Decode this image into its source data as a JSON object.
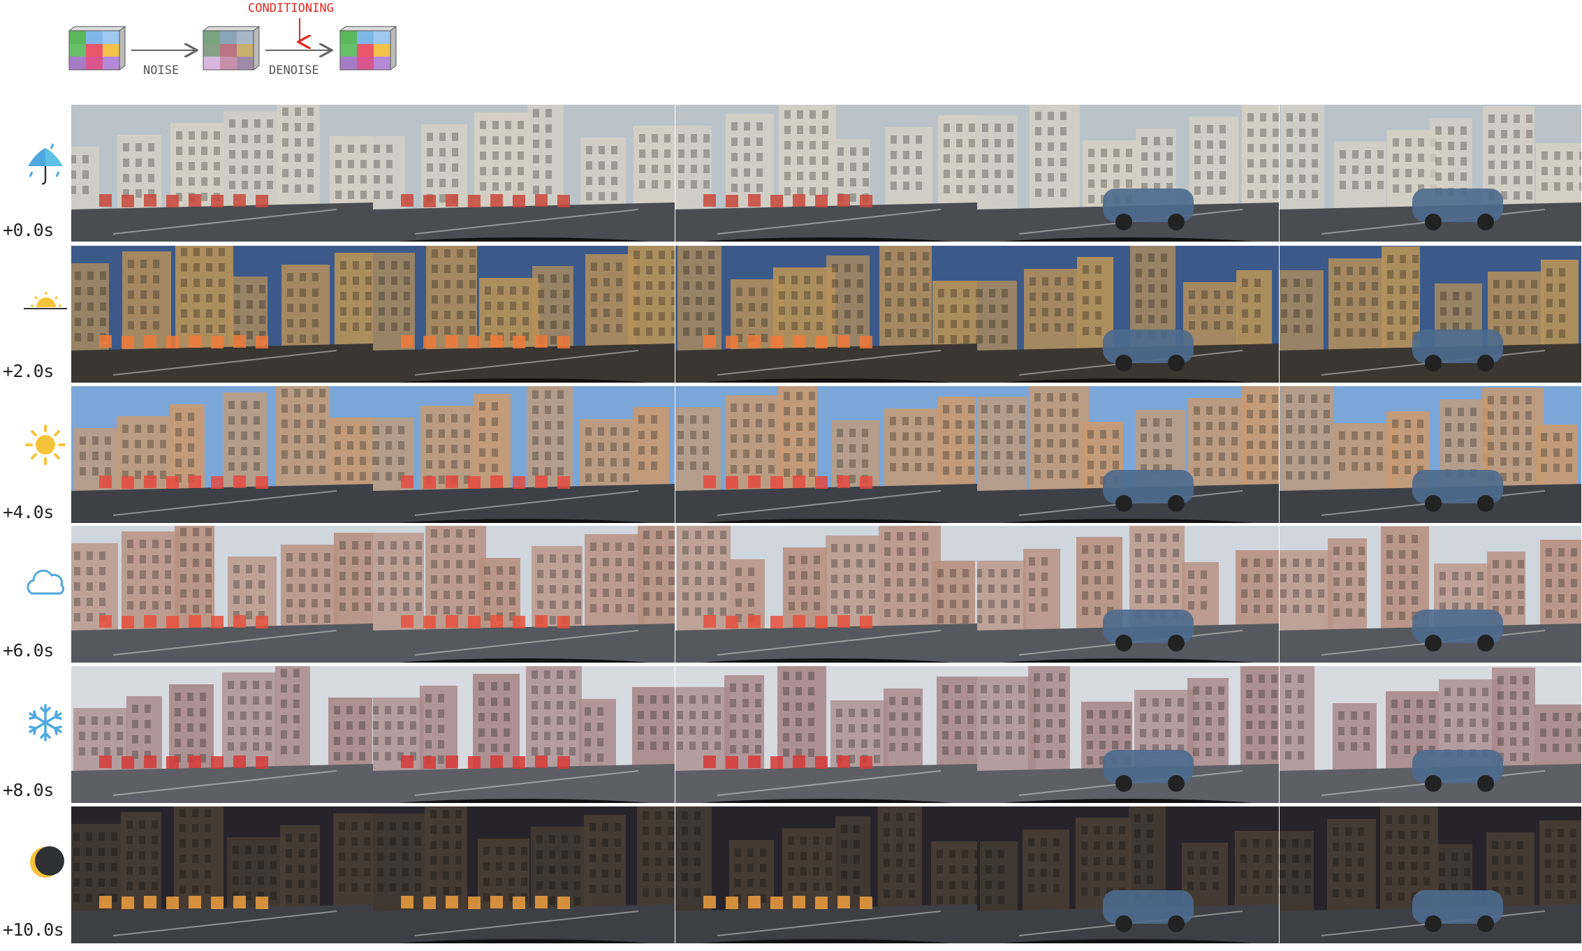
{
  "diagram": {
    "noise_label": "NOISE",
    "denoise_label": "DENOISE",
    "conditioning_label": "CONDITIONING",
    "conditioning_color": "#e0281e"
  },
  "rows": [
    {
      "time": "+0.0s",
      "condition": "rain-umbrella-icon",
      "palette": {
        "sky": "#b9c3c9",
        "bldg": "#d6d0c4",
        "road": "#4a4c52",
        "accent": "#c9463a"
      }
    },
    {
      "time": "+2.0s",
      "condition": "sunrise-icon",
      "palette": {
        "sky": "#3b5a8a",
        "bldg": "#b8925a",
        "road": "#3a3632",
        "accent": "#f07a3a"
      }
    },
    {
      "time": "+4.0s",
      "condition": "sun-icon",
      "palette": {
        "sky": "#7aa6d8",
        "bldg": "#c89a70",
        "road": "#3e4048",
        "accent": "#e54a40"
      }
    },
    {
      "time": "+6.0s",
      "condition": "cloud-icon",
      "palette": {
        "sky": "#cfd6de",
        "bldg": "#b89080",
        "road": "#55585e",
        "accent": "#e8503c"
      }
    },
    {
      "time": "+8.0s",
      "condition": "snowflake-icon",
      "palette": {
        "sky": "#d7dade",
        "bldg": "#a8888a",
        "road": "#5d5f64",
        "accent": "#d63a36"
      }
    },
    {
      "time": "+10.0s",
      "condition": "moon-icon",
      "palette": {
        "sky": "#26242a",
        "bldg": "#4a3e34",
        "road": "#3e3f44",
        "accent": "#f0a040"
      }
    }
  ]
}
